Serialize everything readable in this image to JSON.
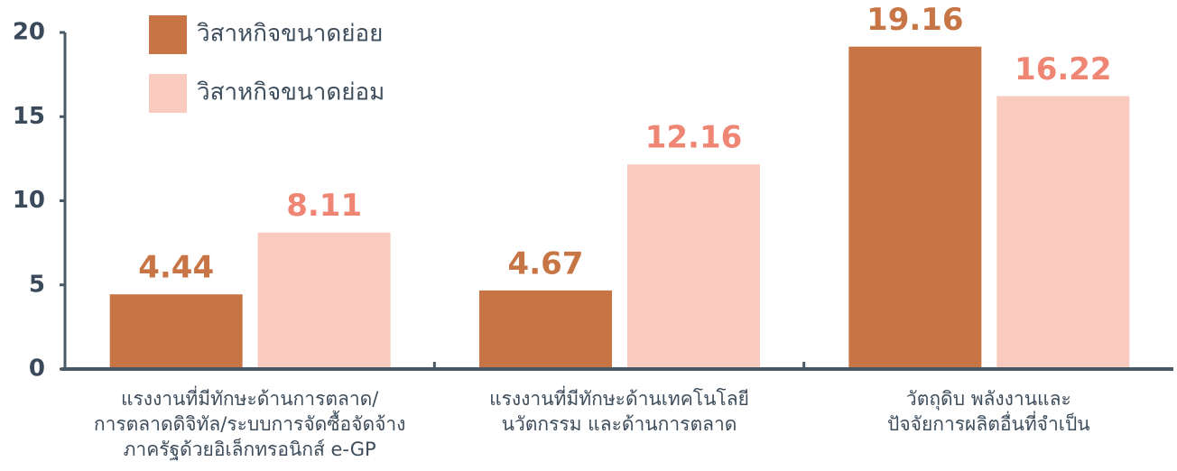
{
  "chart_data": {
    "type": "bar",
    "categories": [
      "แรงงานที่มีทักษะด้านการตลาด/\nการตลาดดิจิทัล/ระบบการจัดซื้อจัดจ้าง\nภาครัฐด้วยอิเล็กทรอนิกส์ e-GP",
      "แรงงานที่มีทักษะด้านเทคโนโลยี\nนวัตกรรม และด้านการตลาด",
      "วัตถุดิบ พลังงานและ\nปัจจัยการผลิตอื่นที่จำเป็น"
    ],
    "series": [
      {
        "name": "วิสาหกิจขนาดย่อย",
        "color": "#c87546",
        "label_color": "#c87546",
        "values": [
          4.44,
          4.67,
          19.16
        ]
      },
      {
        "name": "วิสาหกิจขนาดย่อม",
        "color": "#f9cbbf",
        "label_color": "#ef8573",
        "values": [
          8.11,
          12.16,
          16.22
        ]
      }
    ],
    "ylim": [
      0,
      20
    ],
    "yticks": [
      0,
      5,
      10,
      15,
      20
    ],
    "legend": "top-left"
  }
}
